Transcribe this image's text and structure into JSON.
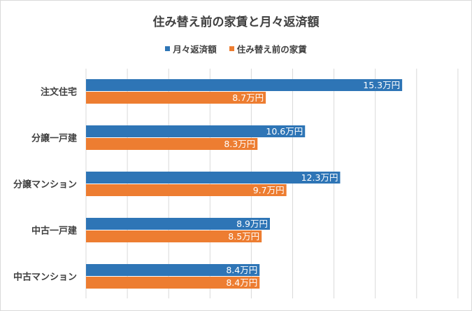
{
  "chart_data": {
    "type": "bar",
    "orientation": "horizontal",
    "title": "住み替え前の家賃と月々返済額",
    "categories": [
      "注文住宅",
      "分譲一戸建",
      "分譲マンション",
      "中古一戸建",
      "中古マンション"
    ],
    "series": [
      {
        "name": "月々返済額",
        "values": [
          15.3,
          10.6,
          12.3,
          8.9,
          8.4
        ],
        "color": "#2e75b6"
      },
      {
        "name": "住み替え前の家賃",
        "values": [
          8.7,
          8.3,
          9.7,
          8.5,
          8.4
        ],
        "color": "#ed7d31"
      }
    ],
    "data_label_suffix": "万円",
    "xlim": [
      0,
      18
    ],
    "xgrid": true,
    "legend_position": "top"
  }
}
